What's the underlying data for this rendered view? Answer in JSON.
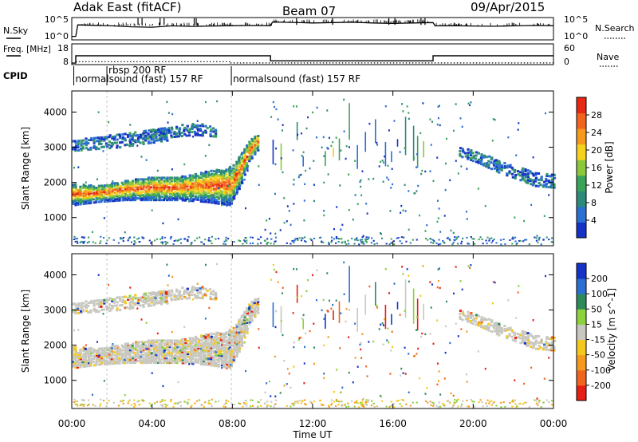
{
  "chart_data": {
    "type": "heatmap",
    "header": {
      "station": "Adak East (fitACF)",
      "beam": "Beam 07",
      "date": "09/Apr/2015"
    },
    "time_axis": {
      "label": "Time UT",
      "ticks": [
        "00:00",
        "04:00",
        "08:00",
        "12:00",
        "16:00",
        "20:00",
        "00:00"
      ],
      "tick_hours": [
        0,
        4,
        8,
        12,
        16,
        20,
        24
      ],
      "range_hours": [
        0,
        24
      ]
    },
    "nsky_panel": {
      "left_label": "N.Sky",
      "right_label": "N.Search",
      "left_ticks": [
        "10^5",
        "10^0"
      ],
      "right_ticks": [
        "10^5",
        "10^0"
      ],
      "log_scale": true,
      "trace": [
        [
          0,
          0.9
        ],
        [
          0.2,
          0.9
        ],
        [
          0.3,
          0.3
        ],
        [
          1,
          0.32
        ],
        [
          2,
          0.35
        ],
        [
          3,
          0.4
        ],
        [
          4,
          0.42
        ],
        [
          5,
          0.35
        ],
        [
          6,
          0.38
        ],
        [
          7,
          0.36
        ],
        [
          8,
          0.34
        ],
        [
          9,
          0.33
        ],
        [
          9.9,
          0.34
        ],
        [
          10,
          0.15
        ],
        [
          11,
          0.17
        ],
        [
          12,
          0.2
        ],
        [
          13,
          0.18
        ],
        [
          14,
          0.16
        ],
        [
          15,
          0.2
        ],
        [
          16,
          0.22
        ],
        [
          17,
          0.2
        ],
        [
          18,
          0.18
        ],
        [
          18.1,
          0.35
        ],
        [
          19,
          0.34
        ],
        [
          20,
          0.36
        ],
        [
          21,
          0.37
        ],
        [
          22,
          0.35
        ],
        [
          23,
          0.33
        ],
        [
          24,
          0.34
        ]
      ],
      "spikes_hours": [
        3.3,
        3.5,
        4.4,
        4.6,
        6.1,
        6.2,
        11.2,
        13.0,
        15.8,
        16.1,
        17.4,
        17.6
      ]
    },
    "freq_panel": {
      "left_label": "Freq. [MHz]",
      "right_label": "Nave",
      "left_ticks": [
        "18",
        "8"
      ],
      "right_ticks": [
        "60",
        "0"
      ],
      "freq_segments_hours": [
        [
          0,
          0.2,
          8.9
        ],
        [
          0.2,
          9.9,
          13.3
        ],
        [
          9.9,
          18.0,
          10.3
        ],
        [
          18.0,
          24,
          13.3
        ]
      ],
      "nave_segments_hours": [
        [
          0.2,
          7.9,
          7
        ],
        [
          7.9,
          24,
          3
        ]
      ],
      "nave_range": [
        0,
        60
      ]
    },
    "cpid_row": {
      "label": "CPID",
      "segments": [
        {
          "start_hour": 0.1,
          "text": "normalsound (fast) 157 RF"
        },
        {
          "start_hour": 1.75,
          "text": "rbsp 200 RF"
        },
        {
          "start_hour": 7.95,
          "text": "normalsound (fast) 157 RF"
        }
      ],
      "dividers_hours": [
        0.1,
        1.75,
        7.95
      ]
    },
    "power_panel": {
      "ylabel": "Slant Range [km]",
      "yticks": [
        1000,
        2000,
        3000,
        4000
      ],
      "ylim": [
        200,
        4600
      ],
      "colorbar_label": "Power [dB]",
      "colorbar_ticks": [
        4,
        8,
        12,
        16,
        20,
        24,
        28
      ],
      "colorbar_range": [
        0,
        32
      ],
      "colors": [
        "#1633c8",
        "#2a6fd1",
        "#2e8a7a",
        "#3aa35a",
        "#8cc83c",
        "#f5d21e",
        "#f59a1e",
        "#f0641e",
        "#e62814"
      ]
    },
    "velocity_panel": {
      "ylabel": "Slant Range [km]",
      "yticks": [
        1000,
        2000,
        3000,
        4000
      ],
      "ylim": [
        200,
        4600
      ],
      "colorbar_label": "Velocity [m s^-1]",
      "colorbar_ticks": [
        "200",
        "100",
        "50",
        "15",
        "-15",
        "-50",
        "-100",
        "-200"
      ],
      "colors": [
        "#1633c8",
        "#2a6fd1",
        "#2e8a5a",
        "#8cd23c",
        "#c8c8c0",
        "#f5c81e",
        "#f59a1e",
        "#f0641e",
        "#e61e14"
      ]
    },
    "echo_regions": [
      {
        "name": "main band",
        "t0": 0,
        "t1": 7.9,
        "r_lo": [
          1350,
          1450,
          1500,
          1500,
          1500,
          1450,
          1350
        ],
        "r_hi": [
          1950,
          1900,
          2050,
          2150,
          2150,
          2300,
          2450
        ],
        "strong": true
      },
      {
        "name": "main band rise",
        "t0": 7.9,
        "t1": 9.3,
        "r_lo": [
          1400,
          1900,
          2600,
          3000
        ],
        "r_hi": [
          2400,
          2800,
          3200,
          3400
        ],
        "strong": true
      },
      {
        "name": "upper band",
        "t0": 0,
        "t1": 4.8,
        "r_lo": [
          2900,
          2950,
          3000,
          3100,
          3200
        ],
        "r_hi": [
          3200,
          3300,
          3400,
          3500,
          3600
        ],
        "strong": false
      },
      {
        "name": "upper band 2",
        "t0": 4.0,
        "t1": 7.2,
        "r_lo": [
          3200,
          3300,
          3350,
          3300
        ],
        "r_hi": [
          3500,
          3600,
          3700,
          3550
        ],
        "strong": false
      },
      {
        "name": "late echoes",
        "t0": 19.3,
        "t1": 24,
        "r_lo": [
          2750,
          2550,
          2300,
          2100,
          1900,
          1850
        ],
        "r_hi": [
          3000,
          2850,
          2650,
          2450,
          2300,
          2250
        ],
        "strong": false
      }
    ],
    "streak_hours": [
      10.0,
      10.4,
      11.2,
      11.5,
      12.6,
      13.0,
      13.3,
      13.8,
      14.2,
      14.6,
      15.1,
      15.6,
      15.9,
      16.2,
      16.6,
      17.0,
      17.2,
      17.5
    ]
  }
}
